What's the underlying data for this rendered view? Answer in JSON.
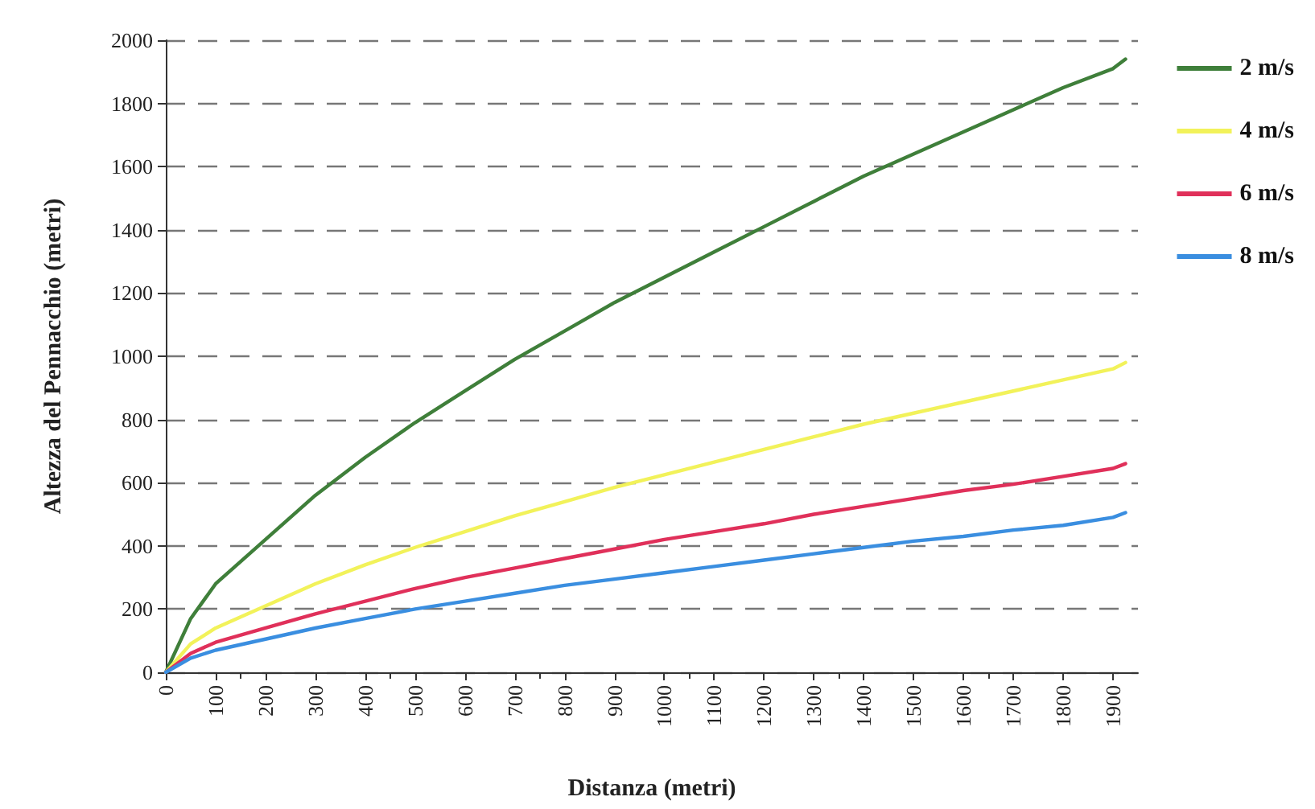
{
  "chart_data": {
    "type": "line",
    "xlabel": "Distanza (metri)",
    "ylabel": "Altezza del Pennacchio (metri)",
    "xlim": [
      0,
      1950
    ],
    "xticks": [
      0,
      100,
      200,
      300,
      400,
      500,
      600,
      700,
      800,
      900,
      1000,
      1100,
      1200,
      1300,
      1400,
      1500,
      1600,
      1700,
      1800,
      1900
    ],
    "ylim": [
      0,
      2000
    ],
    "yticks": [
      0,
      200,
      400,
      600,
      800,
      1000,
      1200,
      1400,
      1600,
      1800,
      2000
    ],
    "grid": "y",
    "legend": "right",
    "marker": "none",
    "line_style": "solid",
    "x": [
      0,
      50,
      100,
      200,
      300,
      400,
      500,
      600,
      700,
      800,
      900,
      1000,
      1100,
      1200,
      1300,
      1400,
      1500,
      1600,
      1700,
      1800,
      1900,
      1925
    ],
    "series": [
      {
        "name": "2 m/s",
        "color": "#3f7f3a",
        "values": [
          0,
          170,
          280,
          420,
          560,
          680,
          790,
          890,
          990,
          1080,
          1170,
          1250,
          1330,
          1410,
          1490,
          1570,
          1640,
          1710,
          1780,
          1850,
          1910,
          1940
        ]
      },
      {
        "name": "4 m/s",
        "color": "#f2f25a",
        "values": [
          0,
          90,
          140,
          210,
          280,
          340,
          395,
          445,
          495,
          540,
          585,
          625,
          665,
          705,
          745,
          785,
          820,
          855,
          890,
          925,
          960,
          980
        ]
      },
      {
        "name": "6 m/s",
        "color": "#e0305a",
        "values": [
          0,
          60,
          95,
          140,
          185,
          225,
          265,
          300,
          330,
          360,
          390,
          420,
          445,
          470,
          500,
          525,
          550,
          575,
          595,
          620,
          645,
          660
        ]
      },
      {
        "name": "8 m/s",
        "color": "#3a8ee0",
        "values": [
          0,
          45,
          70,
          105,
          140,
          170,
          200,
          225,
          250,
          275,
          295,
          315,
          335,
          355,
          375,
          395,
          415,
          430,
          450,
          465,
          490,
          505
        ]
      }
    ]
  }
}
